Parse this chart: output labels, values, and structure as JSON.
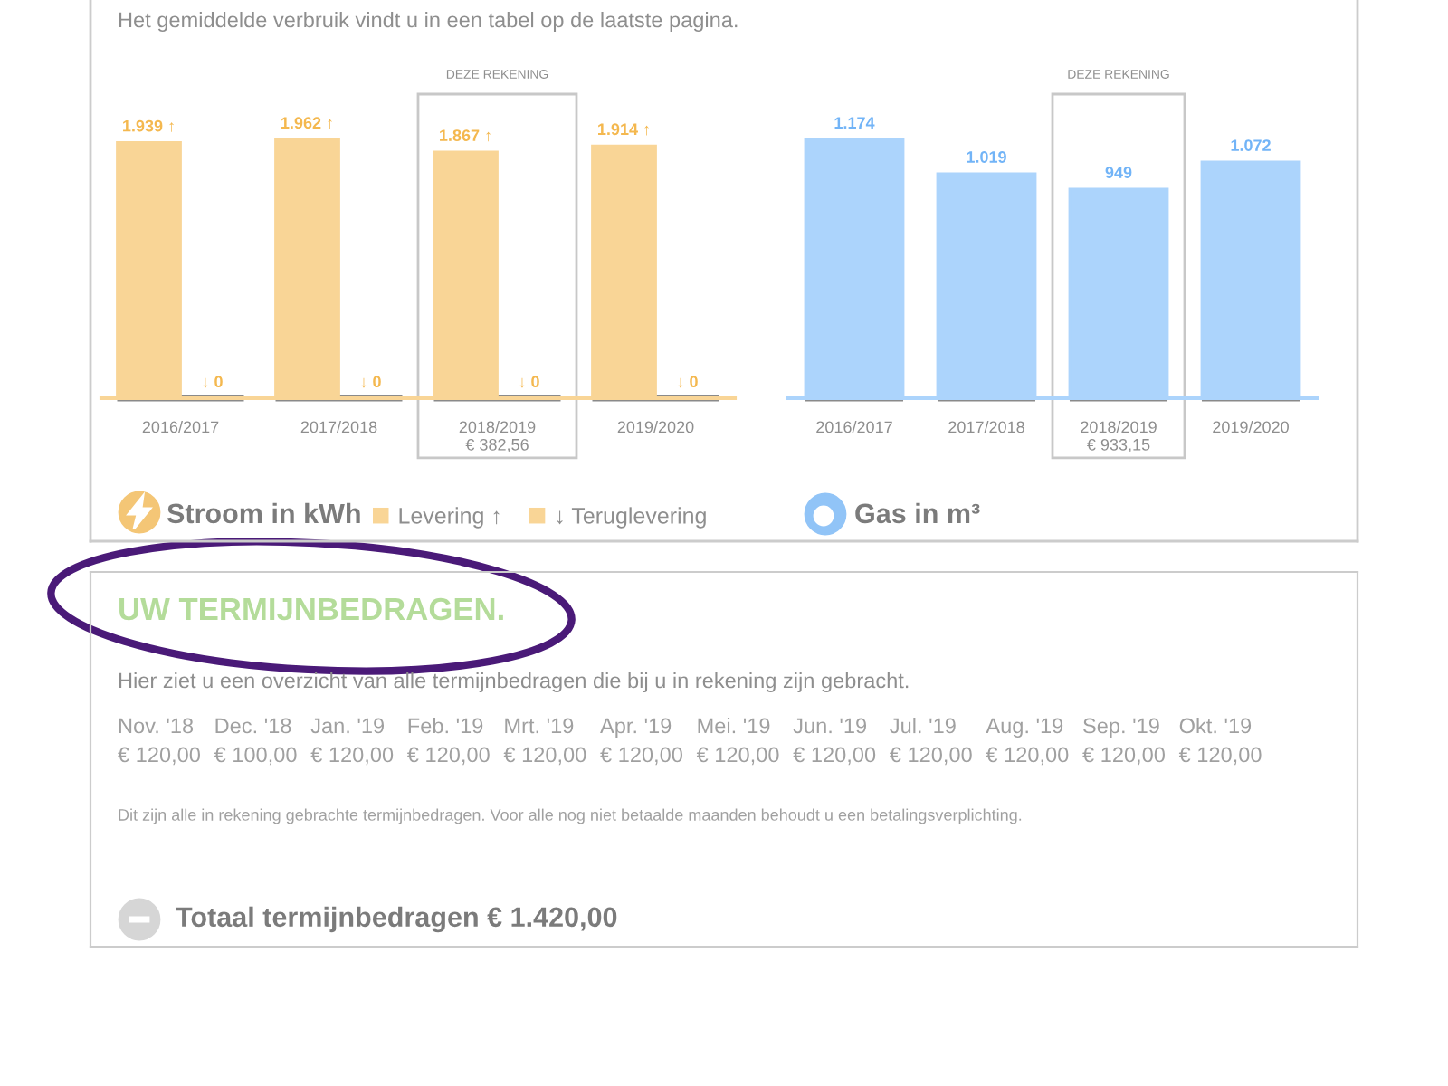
{
  "chart_data": [
    {
      "type": "bar",
      "title": "Stroom in kWh",
      "categories": [
        "2016/2017",
        "2017/2018",
        "2018/2019\n€ 382,56",
        "2019/2020"
      ],
      "series": [
        {
          "name": "Levering ↑",
          "color": "#f9d596",
          "values": [
            1939,
            1962,
            1867,
            1914
          ],
          "value_labels": [
            "1.939 ↑",
            "1.962 ↑",
            "1.867 ↑",
            "1.914 ↑"
          ]
        },
        {
          "name": "↓ Teruglevering",
          "color": "#f9d596",
          "values": [
            0,
            0,
            0,
            0
          ],
          "value_labels": [
            "↓ 0",
            "↓ 0",
            "↓ 0",
            "↓ 0"
          ]
        }
      ],
      "annotations": [
        "Het gemiddelde verbruik vindt u in een tabel op de laatste pagina.",
        "DEZE REKENING"
      ],
      "legend": "bottom",
      "tick_labels": "x"
    },
    {
      "type": "bar",
      "title": "Gas in m³",
      "categories": [
        "2016/2017",
        "2017/2018",
        "2018/2019\n€ 933,15",
        "2019/2020"
      ],
      "values": [
        1174,
        1019,
        949,
        1072
      ],
      "color": "#acd4fc",
      "value_labels": [
        "1.174",
        "1.019",
        "949",
        "1.072"
      ],
      "annotations": [
        "DEZE REKENING"
      ],
      "tick_labels": "x"
    },
    {
      "type": "other",
      "title": "UW TERMIJNBEDRAGEN.",
      "subtitle": "Hier ziet u een overzicht van alle termijnbedragen die bij u in rekening zijn gebracht.",
      "categories": [
        "Nov. '18",
        "Dec. '18",
        "Jan. '19",
        "Feb. '19",
        "Mrt. '19",
        "Apr. '19",
        "Mei. '19",
        "Jun. '19",
        "Jul. '19",
        "Aug. '19",
        "Sep. '19",
        "Okt. '19"
      ],
      "value_labels": [
        "€ 120,00",
        "€ 100,00",
        "€ 120,00",
        "€ 120,00",
        "€ 120,00",
        "€ 120,00",
        "€ 120,00",
        "€ 120,00",
        "€ 120,00",
        "€ 120,00",
        "€ 120,00",
        "€ 120,00"
      ],
      "annotations": [
        "Dit zijn alle in rekening gebrachte termijnbedragen. Voor alle nog niet betaalde maanden behoudt u een betalingsverplichting.",
        "Totaal termijnbedragen € 1.420,00"
      ]
    }
  ]
}
